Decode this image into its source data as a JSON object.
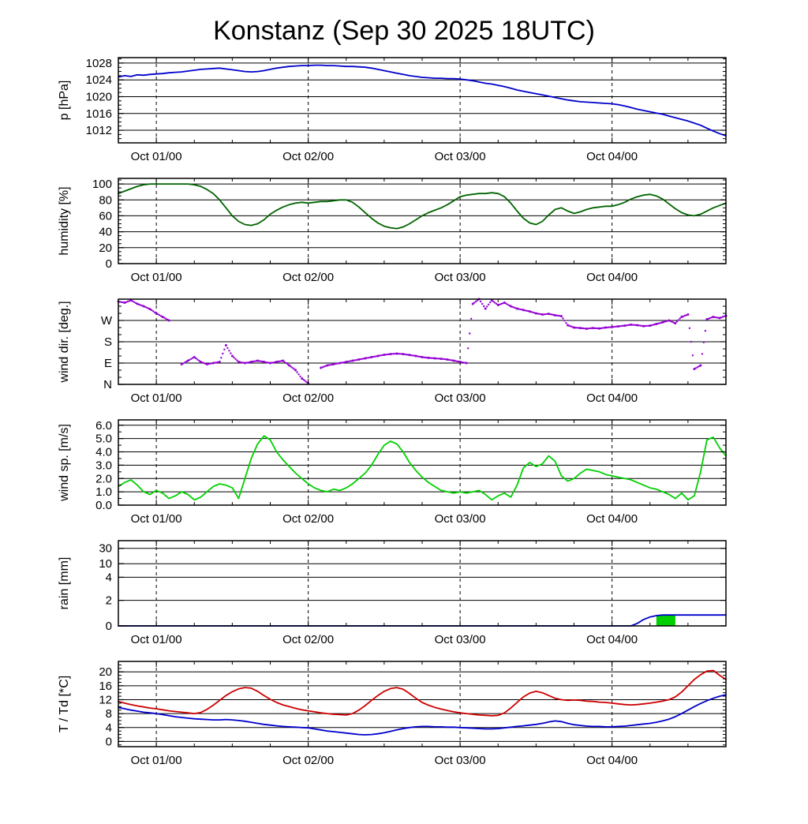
{
  "title": "Konstanz (Sep 30 2025 18UTC)",
  "x_axis": {
    "start_hour": 0,
    "end_hour": 96,
    "minor_tick_step": 6,
    "day_ticks": [
      {
        "hour": 6,
        "label": "Oct 01/00"
      },
      {
        "hour": 30,
        "label": "Oct 02/00"
      },
      {
        "hour": 54,
        "label": "Oct 03/00"
      },
      {
        "hour": 78,
        "label": "Oct 04/00"
      }
    ]
  },
  "chart_data": [
    {
      "id": "pressure",
      "type": "line",
      "ylabel": "p [hPa]",
      "ymin": 1009,
      "ymax": 1029.3,
      "minor_step": 1,
      "yticks": [
        {
          "v": 1012,
          "label": "1012"
        },
        {
          "v": 1016,
          "label": "1016"
        },
        {
          "v": 1020,
          "label": "1020"
        },
        {
          "v": 1024,
          "label": "1024"
        },
        {
          "v": 1028,
          "label": "1028"
        }
      ],
      "series": [
        {
          "name": "pressure",
          "color": "#0000cc",
          "values": [
            1024.7,
            1025.0,
            1024.8,
            1025.2,
            1025.1,
            1025.3,
            1025.4,
            1025.5,
            1025.7,
            1025.8,
            1025.9,
            1026.1,
            1026.3,
            1026.5,
            1026.6,
            1026.7,
            1026.8,
            1026.6,
            1026.4,
            1026.2,
            1026.0,
            1025.9,
            1026.0,
            1026.2,
            1026.5,
            1026.8,
            1027.0,
            1027.2,
            1027.3,
            1027.4,
            1027.4,
            1027.5,
            1027.5,
            1027.4,
            1027.4,
            1027.3,
            1027.2,
            1027.2,
            1027.1,
            1027.0,
            1026.8,
            1026.5,
            1026.2,
            1025.9,
            1025.6,
            1025.3,
            1025.0,
            1024.8,
            1024.6,
            1024.5,
            1024.4,
            1024.4,
            1024.3,
            1024.3,
            1024.2,
            1024.0,
            1023.8,
            1023.5,
            1023.2,
            1023.0,
            1022.7,
            1022.4,
            1022.0,
            1021.6,
            1021.3,
            1021.0,
            1020.7,
            1020.4,
            1020.1,
            1019.8,
            1019.5,
            1019.2,
            1019.0,
            1018.8,
            1018.7,
            1018.6,
            1018.5,
            1018.4,
            1018.3,
            1018.1,
            1017.8,
            1017.4,
            1017.0,
            1016.7,
            1016.4,
            1016.1,
            1015.8,
            1015.4,
            1015.0,
            1014.6,
            1014.2,
            1013.7,
            1013.2,
            1012.5,
            1011.8,
            1011.2,
            1010.7
          ]
        }
      ]
    },
    {
      "id": "humidity",
      "type": "line",
      "ylabel": "humidity [%]",
      "ymin": 0,
      "ymax": 107,
      "minor_step": 5,
      "yticks": [
        {
          "v": 0,
          "label": "0"
        },
        {
          "v": 20,
          "label": "20"
        },
        {
          "v": 40,
          "label": "40"
        },
        {
          "v": 60,
          "label": "60"
        },
        {
          "v": 80,
          "label": "80"
        },
        {
          "v": 100,
          "label": "100"
        }
      ],
      "series": [
        {
          "name": "humidity",
          "color": "#006400",
          "values": [
            88,
            91,
            94,
            97,
            99,
            100,
            100,
            100,
            100,
            100,
            100,
            100,
            99,
            97,
            93,
            88,
            80,
            70,
            60,
            53,
            49,
            48,
            50,
            55,
            62,
            67,
            71,
            74,
            76,
            77,
            76,
            77,
            78,
            78,
            79,
            80,
            80,
            77,
            71,
            64,
            57,
            51,
            47,
            45,
            44,
            46,
            50,
            55,
            60,
            64,
            67,
            70,
            74,
            79,
            84,
            86,
            87,
            88,
            88,
            89,
            88,
            84,
            76,
            66,
            57,
            51,
            49,
            53,
            61,
            68,
            70,
            66,
            63,
            65,
            68,
            70,
            71,
            72,
            72,
            74,
            77,
            81,
            84,
            86,
            87,
            85,
            81,
            75,
            69,
            64,
            61,
            60,
            62,
            66,
            70,
            73,
            76
          ]
        }
      ]
    },
    {
      "id": "winddir",
      "type": "scatter",
      "ylabel": "wind dir. [deg.]",
      "ymin": 0,
      "ymax": 360,
      "minor_step": 30,
      "yticks": [
        {
          "v": 0,
          "label": "N"
        },
        {
          "v": 90,
          "label": "E"
        },
        {
          "v": 180,
          "label": "S"
        },
        {
          "v": 270,
          "label": "W"
        }
      ],
      "series": [
        {
          "name": "wind-direction",
          "color": "#9400d3",
          "style": "dots",
          "values": [
            350,
            345,
            355,
            340,
            330,
            318,
            300,
            285,
            270,
            null,
            85,
            100,
            115,
            95,
            85,
            90,
            95,
            165,
            120,
            95,
            90,
            95,
            100,
            95,
            90,
            95,
            100,
            80,
            60,
            25,
            5,
            null,
            70,
            80,
            85,
            90,
            95,
            100,
            105,
            110,
            115,
            120,
            125,
            128,
            130,
            128,
            124,
            120,
            115,
            112,
            110,
            108,
            105,
            100,
            95,
            90,
            340,
            360,
            320,
            355,
            335,
            345,
            330,
            320,
            314,
            308,
            300,
            295,
            298,
            292,
            288,
            250,
            240,
            238,
            235,
            238,
            236,
            240,
            242,
            245,
            248,
            252,
            250,
            246,
            248,
            255,
            262,
            270,
            258,
            285,
            295,
            65,
            80,
            275,
            285,
            280,
            290
          ]
        }
      ]
    },
    {
      "id": "windspeed",
      "type": "line",
      "ylabel": "wind sp. [m/s]",
      "ymin": 0,
      "ymax": 6.4,
      "minor_step": 0.5,
      "yticks": [
        {
          "v": 0,
          "label": "0.0"
        },
        {
          "v": 1,
          "label": "1.0"
        },
        {
          "v": 2,
          "label": "2.0"
        },
        {
          "v": 3,
          "label": "3.0"
        },
        {
          "v": 4,
          "label": "4.0"
        },
        {
          "v": 5,
          "label": "5.0"
        },
        {
          "v": 6,
          "label": "6.0"
        }
      ],
      "series": [
        {
          "name": "wind-speed",
          "color": "#00d000",
          "values": [
            1.4,
            1.7,
            1.9,
            1.5,
            1.0,
            0.8,
            1.1,
            0.9,
            0.5,
            0.7,
            1.0,
            0.8,
            0.4,
            0.6,
            1.0,
            1.4,
            1.6,
            1.5,
            1.3,
            0.5,
            2.0,
            3.5,
            4.6,
            5.2,
            4.9,
            4.0,
            3.4,
            2.9,
            2.4,
            2.0,
            1.6,
            1.3,
            1.1,
            1.0,
            1.2,
            1.1,
            1.3,
            1.6,
            2.0,
            2.4,
            3.0,
            3.8,
            4.5,
            4.8,
            4.6,
            4.0,
            3.2,
            2.6,
            2.1,
            1.7,
            1.4,
            1.1,
            1.0,
            0.9,
            1.0,
            0.9,
            1.0,
            1.1,
            0.8,
            0.4,
            0.7,
            0.9,
            0.6,
            1.5,
            2.8,
            3.2,
            2.9,
            3.1,
            3.7,
            3.3,
            2.2,
            1.8,
            2.0,
            2.4,
            2.7,
            2.6,
            2.5,
            2.3,
            2.2,
            2.1,
            2.0,
            1.9,
            1.7,
            1.5,
            1.3,
            1.2,
            1.0,
            0.8,
            0.5,
            0.9,
            0.4,
            0.7,
            2.5,
            4.9,
            5.1,
            4.3,
            3.7
          ]
        }
      ]
    },
    {
      "id": "rain",
      "type": "line",
      "ylabel": "rain [mm]",
      "scale": {
        "ticks": [
          0,
          2,
          4,
          10,
          30
        ],
        "pos": [
          0,
          0.3,
          0.57,
          0.73,
          0.91
        ]
      },
      "yticks": [
        {
          "v": 0,
          "label": "0"
        },
        {
          "v": 2,
          "label": "2"
        },
        {
          "v": 4,
          "label": "4"
        },
        {
          "v": 10,
          "label": "10"
        },
        {
          "v": 30,
          "label": "30"
        }
      ],
      "bars": [
        {
          "name": "rain-interval",
          "color": "#00d000",
          "start": 85,
          "end": 88,
          "value": 0.8
        }
      ],
      "series": [
        {
          "name": "rain-accumulated",
          "color": "#0000cc",
          "values": [
            0,
            0,
            0,
            0,
            0,
            0,
            0,
            0,
            0,
            0,
            0,
            0,
            0,
            0,
            0,
            0,
            0,
            0,
            0,
            0,
            0,
            0,
            0,
            0,
            0,
            0,
            0,
            0,
            0,
            0,
            0,
            0,
            0,
            0,
            0,
            0,
            0,
            0,
            0,
            0,
            0,
            0,
            0,
            0,
            0,
            0,
            0,
            0,
            0,
            0,
            0,
            0,
            0,
            0,
            0,
            0,
            0,
            0,
            0,
            0,
            0,
            0,
            0,
            0,
            0,
            0,
            0,
            0,
            0,
            0,
            0,
            0,
            0,
            0,
            0,
            0,
            0,
            0,
            0,
            0,
            0,
            0,
            0.2,
            0.5,
            0.7,
            0.8,
            0.85,
            0.85,
            0.85,
            0.85,
            0.85,
            0.85,
            0.85,
            0.85,
            0.85,
            0.85,
            0.85
          ]
        }
      ]
    },
    {
      "id": "temperature",
      "type": "line",
      "ylabel": "T / Td [*C]",
      "ymin": -1.5,
      "ymax": 23,
      "minor_step": 1,
      "yticks": [
        {
          "v": 0,
          "label": "0"
        },
        {
          "v": 4,
          "label": "4"
        },
        {
          "v": 8,
          "label": "8"
        },
        {
          "v": 12,
          "label": "12"
        },
        {
          "v": 16,
          "label": "16"
        },
        {
          "v": 20,
          "label": "20"
        }
      ],
      "series": [
        {
          "name": "temperature",
          "color": "#cc0000",
          "values": [
            11.5,
            11.0,
            10.6,
            10.2,
            9.9,
            9.6,
            9.4,
            9.1,
            8.8,
            8.6,
            8.4,
            8.2,
            8.0,
            8.3,
            9.2,
            10.4,
            11.8,
            13.2,
            14.3,
            15.1,
            15.5,
            15.3,
            14.4,
            13.2,
            12.1,
            11.2,
            10.5,
            10.0,
            9.5,
            9.1,
            8.8,
            8.5,
            8.2,
            8.0,
            7.8,
            7.7,
            7.6,
            8.0,
            9.0,
            10.3,
            11.8,
            13.2,
            14.4,
            15.2,
            15.5,
            15.0,
            13.8,
            12.4,
            11.2,
            10.4,
            9.8,
            9.3,
            8.9,
            8.5,
            8.2,
            8.0,
            7.8,
            7.6,
            7.5,
            7.4,
            7.5,
            8.2,
            9.6,
            11.2,
            12.8,
            13.9,
            14.4,
            14.0,
            13.2,
            12.4,
            12.0,
            11.8,
            11.9,
            11.8,
            11.6,
            11.5,
            11.3,
            11.2,
            11.0,
            10.8,
            10.6,
            10.5,
            10.6,
            10.8,
            11.0,
            11.3,
            11.6,
            12.0,
            12.8,
            14.2,
            16.0,
            17.8,
            19.2,
            20.2,
            20.4,
            19.0,
            17.8
          ]
        },
        {
          "name": "dew-point",
          "color": "#0000cc",
          "values": [
            9.8,
            9.4,
            9.0,
            8.7,
            8.4,
            8.2,
            8.0,
            7.7,
            7.4,
            7.1,
            6.9,
            6.7,
            6.5,
            6.4,
            6.3,
            6.2,
            6.2,
            6.3,
            6.2,
            6.0,
            5.8,
            5.5,
            5.2,
            4.9,
            4.7,
            4.5,
            4.3,
            4.2,
            4.1,
            4.0,
            3.9,
            3.6,
            3.3,
            3.0,
            2.8,
            2.6,
            2.4,
            2.2,
            2.0,
            1.9,
            2.0,
            2.2,
            2.5,
            2.9,
            3.3,
            3.7,
            4.0,
            4.2,
            4.3,
            4.3,
            4.2,
            4.2,
            4.1,
            4.1,
            4.0,
            3.9,
            3.8,
            3.7,
            3.6,
            3.6,
            3.7,
            3.9,
            4.1,
            4.3,
            4.5,
            4.7,
            4.9,
            5.2,
            5.6,
            5.9,
            5.7,
            5.2,
            4.8,
            4.6,
            4.4,
            4.3,
            4.3,
            4.2,
            4.2,
            4.3,
            4.4,
            4.6,
            4.8,
            5.0,
            5.2,
            5.5,
            5.9,
            6.4,
            7.1,
            8.0,
            9.0,
            10.0,
            10.9,
            11.7,
            12.4,
            13.0,
            13.4
          ]
        }
      ]
    }
  ]
}
